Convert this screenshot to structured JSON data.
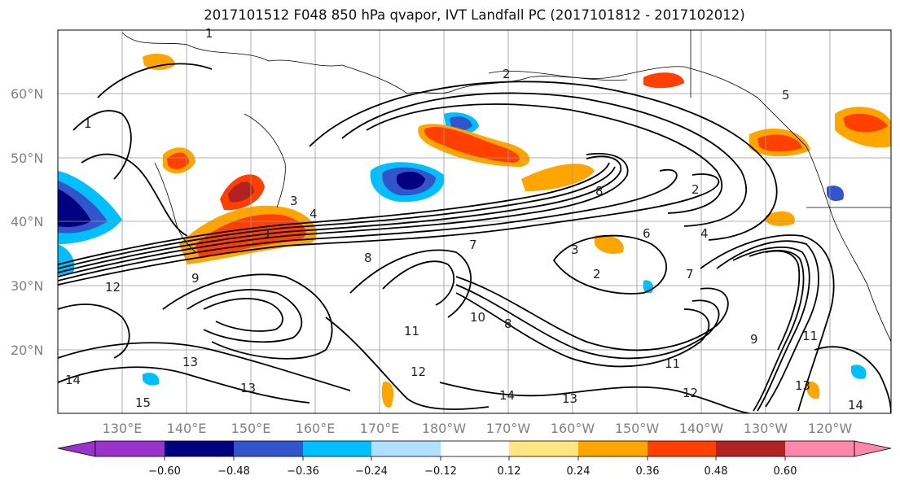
{
  "title": "2017101512 F048 850 hPa qvapor, IVT Landfall PC (2017101812 - 2017102012)",
  "lat_labels": [
    "60°N",
    "50°N",
    "40°N",
    "30°N",
    "20°N"
  ],
  "lon_labels": [
    "130°E",
    "140°E",
    "150°E",
    "160°E",
    "170°E",
    "180°W",
    "170°W",
    "160°W",
    "150°W",
    "140°W",
    "130°W",
    "120°W"
  ],
  "colorbar": {
    "tick_labels": [
      "−0.60",
      "−0.48",
      "−0.36",
      "−0.24",
      "−0.12",
      "0.12",
      "0.24",
      "0.36",
      "0.48",
      "0.60"
    ],
    "colors": [
      "#9933cc",
      "#000080",
      "#3355cc",
      "#00bfff",
      "#b0e0ff",
      "#ffffff",
      "#ffe680",
      "#ffa500",
      "#ff4000",
      "#b22222",
      "#ff88aa"
    ]
  },
  "contour_labels": [
    "1",
    "2",
    "3",
    "4",
    "5",
    "6",
    "7",
    "8",
    "9",
    "10",
    "11",
    "12",
    "13",
    "14",
    "15"
  ]
}
